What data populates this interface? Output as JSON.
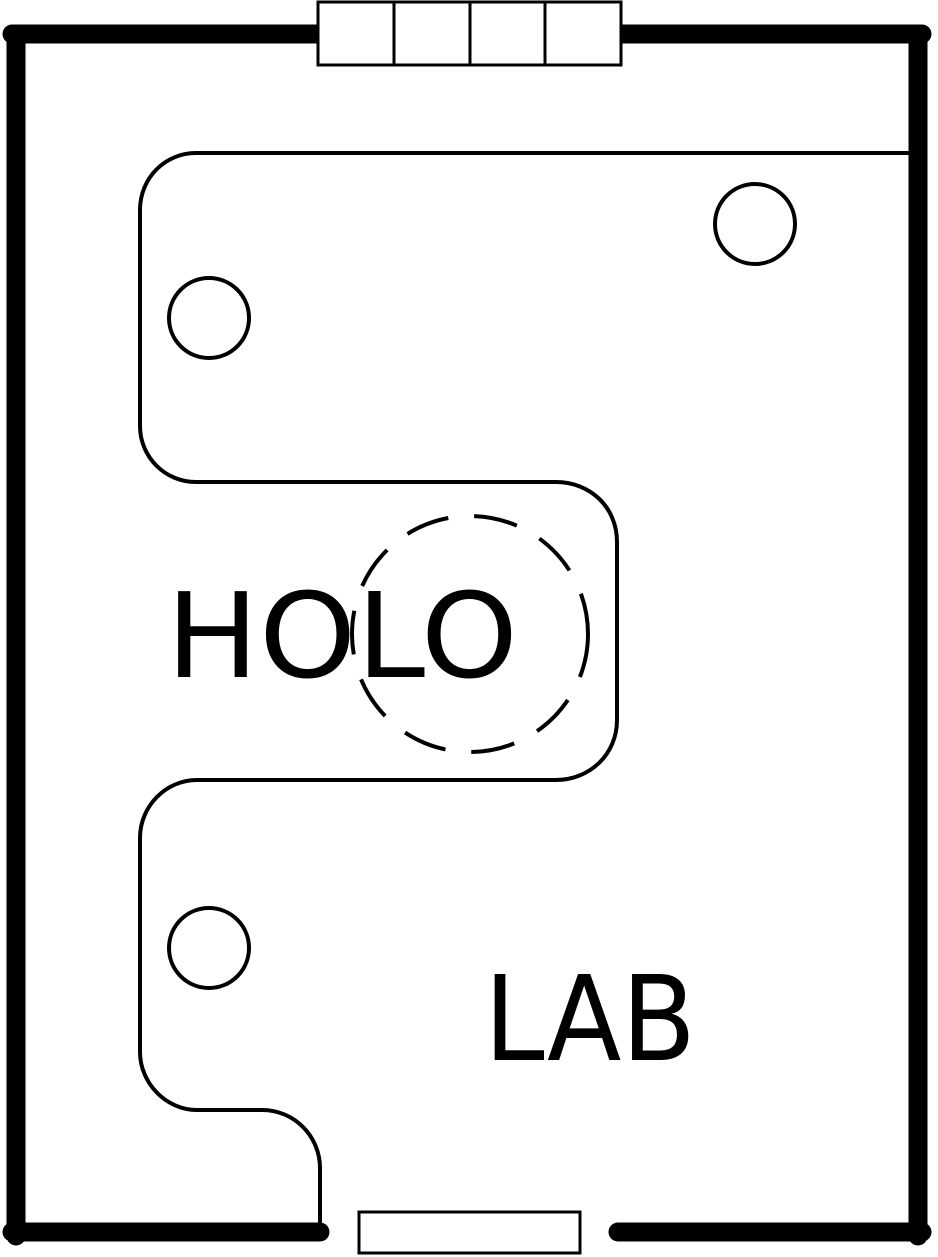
{
  "map": {
    "labels": {
      "holo": "HOLO",
      "lab": "LAB"
    },
    "colors": {
      "ink": "#000000",
      "paper": "#ffffff"
    },
    "icons": {
      "top_door": "double-door-icon",
      "bottom_door": "door-icon",
      "markers": "circle-marker-icon",
      "projector": "dashed-circle-icon"
    }
  }
}
